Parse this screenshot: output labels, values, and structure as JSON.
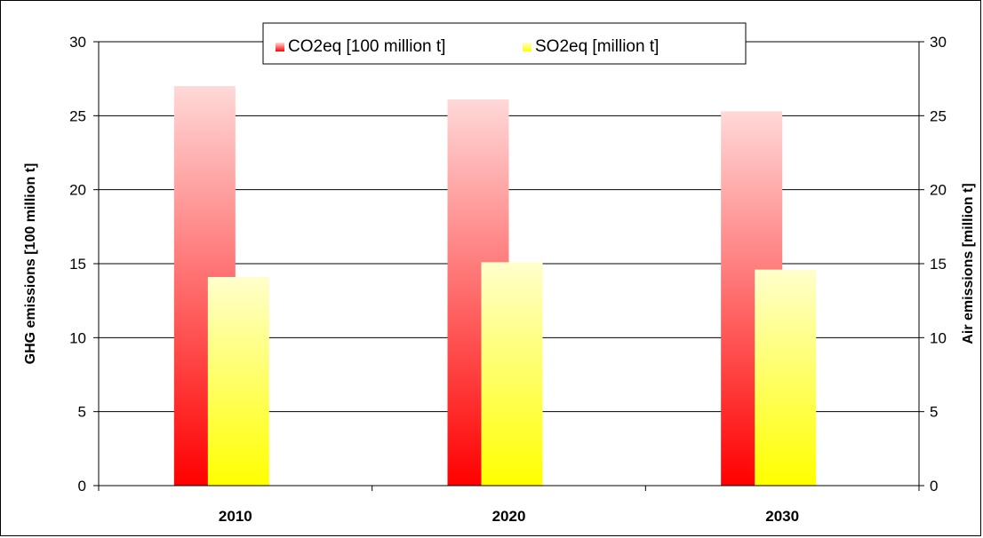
{
  "chart_data": {
    "type": "bar",
    "categories": [
      "2010",
      "2020",
      "2030"
    ],
    "series": [
      {
        "name": "CO2eq [100 million t]",
        "values": [
          27.0,
          26.1,
          25.3
        ],
        "axis": "left",
        "color_top": "#ffd8d8",
        "color_bottom": "#ff0000"
      },
      {
        "name": "SO2eq [million t]",
        "values": [
          14.1,
          15.1,
          14.6
        ],
        "axis": "right",
        "color_top": "#ffffcc",
        "color_bottom": "#ffff00"
      }
    ],
    "ylabel": "GHG emissions [100 million t]",
    "y2label": "Air emissions [million t]",
    "ylim": [
      0,
      30
    ],
    "y2lim": [
      0,
      30
    ],
    "yticks": [
      "0",
      "5",
      "10",
      "15",
      "20",
      "25",
      "30"
    ],
    "y2ticks": [
      "0",
      "5",
      "10",
      "15",
      "20",
      "25",
      "30"
    ],
    "grid": true,
    "legend_position": "top-center"
  }
}
